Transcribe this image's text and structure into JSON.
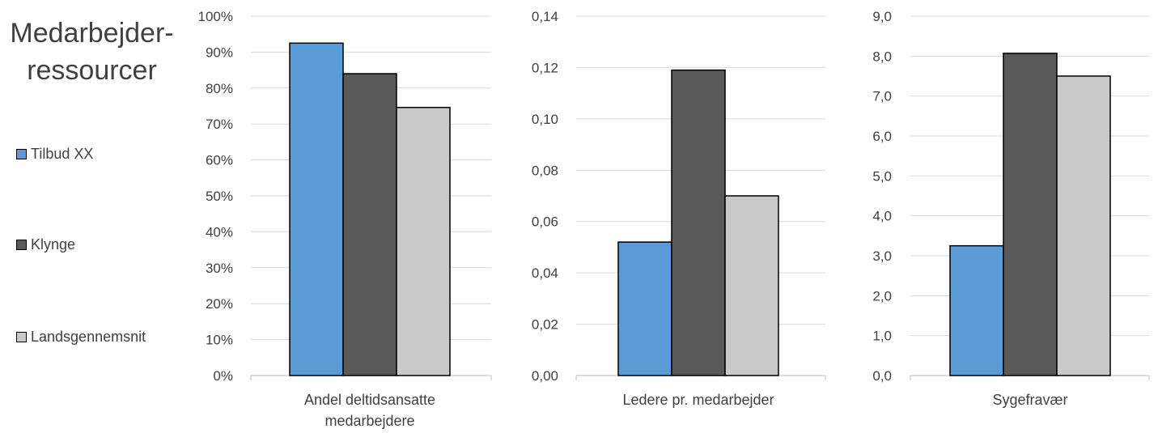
{
  "title": "Medarbejder-ressourcer",
  "title_lines": [
    "Medarbejder-",
    "ressourcer"
  ],
  "legend": [
    {
      "name": "Tilbud XX",
      "color": "#5B9BD5"
    },
    {
      "name": "Klynge",
      "color": "#595959"
    },
    {
      "name": "Landsgennemsnit",
      "color": "#C9C9C9"
    }
  ],
  "chart_data": [
    {
      "type": "bar",
      "categories": [
        "Andel deltidsansatte medarbejdere"
      ],
      "category_lines": [
        "Andel deltidsansatte",
        "medarbejdere"
      ],
      "ylim": [
        0,
        1.0
      ],
      "yticks": [
        "0%",
        "10%",
        "20%",
        "30%",
        "40%",
        "50%",
        "60%",
        "70%",
        "80%",
        "90%",
        "100%"
      ],
      "series": [
        {
          "name": "Tilbud XX",
          "values": [
            0.925
          ]
        },
        {
          "name": "Klynge",
          "values": [
            0.84
          ]
        },
        {
          "name": "Landsgennemsnit",
          "values": [
            0.746
          ]
        }
      ]
    },
    {
      "type": "bar",
      "categories": [
        "Ledere pr. medarbejder"
      ],
      "category_lines": [
        "Ledere pr. medarbejder"
      ],
      "ylim": [
        0,
        0.14
      ],
      "yticks": [
        "0,00",
        "0,02",
        "0,04",
        "0,06",
        "0,08",
        "0,10",
        "0,12",
        "0,14"
      ],
      "series": [
        {
          "name": "Tilbud XX",
          "values": [
            0.052
          ]
        },
        {
          "name": "Klynge",
          "values": [
            0.119
          ]
        },
        {
          "name": "Landsgennemsnit",
          "values": [
            0.07
          ]
        }
      ]
    },
    {
      "type": "bar",
      "categories": [
        "Sygefravær"
      ],
      "category_lines": [
        "Sygefravær"
      ],
      "ylim": [
        0,
        9.0
      ],
      "yticks": [
        "0,0",
        "1,0",
        "2,0",
        "3,0",
        "4,0",
        "5,0",
        "6,0",
        "7,0",
        "8,0",
        "9,0"
      ],
      "series": [
        {
          "name": "Tilbud XX",
          "values": [
            3.25
          ]
        },
        {
          "name": "Klynge",
          "values": [
            8.07
          ]
        },
        {
          "name": "Landsgennemsnit",
          "values": [
            7.5
          ]
        }
      ]
    }
  ]
}
